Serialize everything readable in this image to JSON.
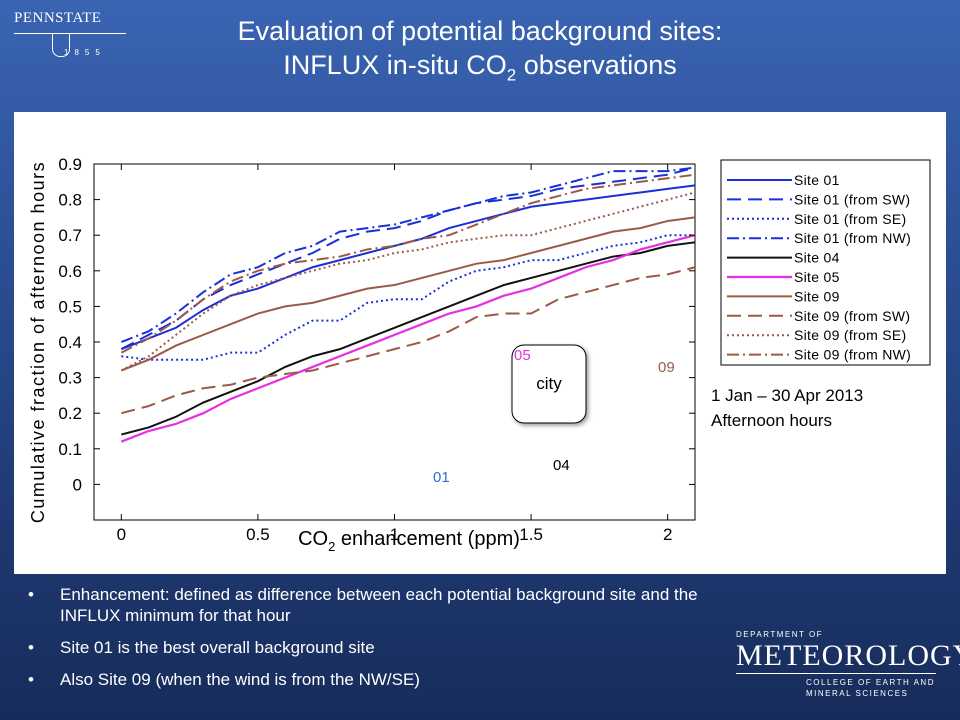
{
  "header": {
    "logo_text": "PENNSTATE",
    "logo_year": "1855",
    "title_line1": "Evaluation of potential background sites:",
    "title_line2_pre": "INFLUX in-situ CO",
    "title_line2_sub": "2",
    "title_line2_post": " observations"
  },
  "chart_data": {
    "type": "line",
    "xlabel_pre": "CO",
    "xlabel_sub": "2",
    "xlabel_post": " enhancement (ppm)",
    "ylabel": "Cumulative fraction of afternoon hours",
    "xlim": [
      -0.1,
      2.1
    ],
    "ylim": [
      -0.1,
      0.9
    ],
    "xticks": [
      0,
      0.5,
      1,
      1.5,
      2
    ],
    "xtick_labels": [
      "0",
      "0.5",
      "1",
      "1.5",
      "2"
    ],
    "yticks": [
      0,
      0.1,
      0.2,
      0.3,
      0.4,
      0.5,
      0.6,
      0.7,
      0.8,
      0.9
    ],
    "ytick_labels": [
      "0",
      "0.1",
      "0.2",
      "0.3",
      "0.4",
      "0.5",
      "0.6",
      "0.7",
      "0.8",
      "0.9"
    ],
    "x": [
      0,
      0.1,
      0.2,
      0.3,
      0.4,
      0.5,
      0.6,
      0.7,
      0.8,
      0.9,
      1.0,
      1.1,
      1.2,
      1.3,
      1.4,
      1.5,
      1.6,
      1.7,
      1.8,
      1.9,
      2.0,
      2.1
    ],
    "series": [
      {
        "name": "Site 01",
        "color": "#1a2fd6",
        "dash": "solid",
        "width": 2,
        "values": [
          0.38,
          0.41,
          0.44,
          0.49,
          0.53,
          0.55,
          0.58,
          0.61,
          0.63,
          0.65,
          0.67,
          0.69,
          0.72,
          0.74,
          0.76,
          0.78,
          0.79,
          0.8,
          0.81,
          0.82,
          0.83,
          0.84
        ]
      },
      {
        "name": "Site 01 (from SW)",
        "color": "#1a2fd6",
        "dash": "long",
        "width": 2,
        "values": [
          0.38,
          0.42,
          0.46,
          0.52,
          0.56,
          0.59,
          0.62,
          0.65,
          0.69,
          0.71,
          0.72,
          0.74,
          0.77,
          0.79,
          0.8,
          0.81,
          0.83,
          0.84,
          0.85,
          0.86,
          0.87,
          0.89
        ]
      },
      {
        "name": "Site 01 (from SE)",
        "color": "#1a2fd6",
        "dash": "dot",
        "width": 2,
        "values": [
          0.36,
          0.35,
          0.35,
          0.35,
          0.37,
          0.37,
          0.42,
          0.46,
          0.46,
          0.51,
          0.52,
          0.52,
          0.57,
          0.6,
          0.61,
          0.63,
          0.63,
          0.65,
          0.67,
          0.68,
          0.7,
          0.7
        ]
      },
      {
        "name": "Site 01 (from NW)",
        "color": "#1a2fd6",
        "dash": "dashdot",
        "width": 2,
        "values": [
          0.4,
          0.43,
          0.48,
          0.54,
          0.59,
          0.61,
          0.65,
          0.67,
          0.71,
          0.72,
          0.73,
          0.75,
          0.77,
          0.79,
          0.81,
          0.82,
          0.84,
          0.86,
          0.88,
          0.88,
          0.88,
          0.89
        ]
      },
      {
        "name": "Site 04",
        "color": "#111111",
        "dash": "solid",
        "width": 2,
        "values": [
          0.14,
          0.16,
          0.19,
          0.23,
          0.26,
          0.29,
          0.33,
          0.36,
          0.38,
          0.41,
          0.44,
          0.47,
          0.5,
          0.53,
          0.56,
          0.58,
          0.6,
          0.62,
          0.64,
          0.65,
          0.67,
          0.68
        ]
      },
      {
        "name": "Site 05",
        "color": "#e62ee6",
        "dash": "solid",
        "width": 2.2,
        "values": [
          0.12,
          0.15,
          0.17,
          0.2,
          0.24,
          0.27,
          0.3,
          0.33,
          0.36,
          0.39,
          0.42,
          0.45,
          0.48,
          0.5,
          0.53,
          0.55,
          0.58,
          0.61,
          0.63,
          0.66,
          0.68,
          0.7
        ]
      },
      {
        "name": "Site 09",
        "color": "#9b5a46",
        "dash": "solid",
        "width": 2,
        "values": [
          0.32,
          0.35,
          0.39,
          0.42,
          0.45,
          0.48,
          0.5,
          0.51,
          0.53,
          0.55,
          0.56,
          0.58,
          0.6,
          0.62,
          0.63,
          0.65,
          0.67,
          0.69,
          0.71,
          0.72,
          0.74,
          0.75
        ]
      },
      {
        "name": "Site 09 (from SW)",
        "color": "#9b5a46",
        "dash": "long",
        "width": 2,
        "values": [
          0.2,
          0.22,
          0.25,
          0.27,
          0.28,
          0.3,
          0.31,
          0.32,
          0.34,
          0.36,
          0.38,
          0.4,
          0.43,
          0.47,
          0.48,
          0.48,
          0.52,
          0.54,
          0.56,
          0.58,
          0.59,
          0.61
        ]
      },
      {
        "name": "Site 09 (from SE)",
        "color": "#9b5a46",
        "dash": "dot",
        "width": 2,
        "values": [
          0.32,
          0.36,
          0.42,
          0.48,
          0.53,
          0.56,
          0.58,
          0.6,
          0.62,
          0.63,
          0.65,
          0.66,
          0.68,
          0.69,
          0.7,
          0.7,
          0.72,
          0.74,
          0.76,
          0.78,
          0.8,
          0.82
        ]
      },
      {
        "name": "Site 09 (from NW)",
        "color": "#9b5a46",
        "dash": "dashdot",
        "width": 2,
        "values": [
          0.37,
          0.41,
          0.46,
          0.52,
          0.57,
          0.6,
          0.62,
          0.63,
          0.64,
          0.66,
          0.67,
          0.69,
          0.7,
          0.73,
          0.76,
          0.79,
          0.81,
          0.83,
          0.84,
          0.85,
          0.86,
          0.87
        ]
      }
    ],
    "map_labels": [
      {
        "text": "05",
        "color": "#e62ee6"
      },
      {
        "text": "09",
        "color": "#9b5a46"
      },
      {
        "text": "city",
        "color": "#000000"
      },
      {
        "text": "04",
        "color": "#000000"
      },
      {
        "text": "01",
        "color": "#2d6fd6"
      }
    ],
    "note_line1": "1 Jan – 30 Apr 2013",
    "note_line2": "Afternoon hours",
    "grid": false,
    "legend_position": "right, outside"
  },
  "bullets": [
    "Enhancement: defined as difference between each potential background site and the INFLUX minimum for that hour",
    "Site 01 is the best overall background site",
    "Also Site 09 (when the wind is from the NW/SE)"
  ],
  "footer_logo": {
    "dept": "DEPARTMENT OF",
    "name": "METEOROLOGY",
    "college1": "COLLEGE OF EARTH AND",
    "college2": "MINERAL SCIENCES"
  }
}
